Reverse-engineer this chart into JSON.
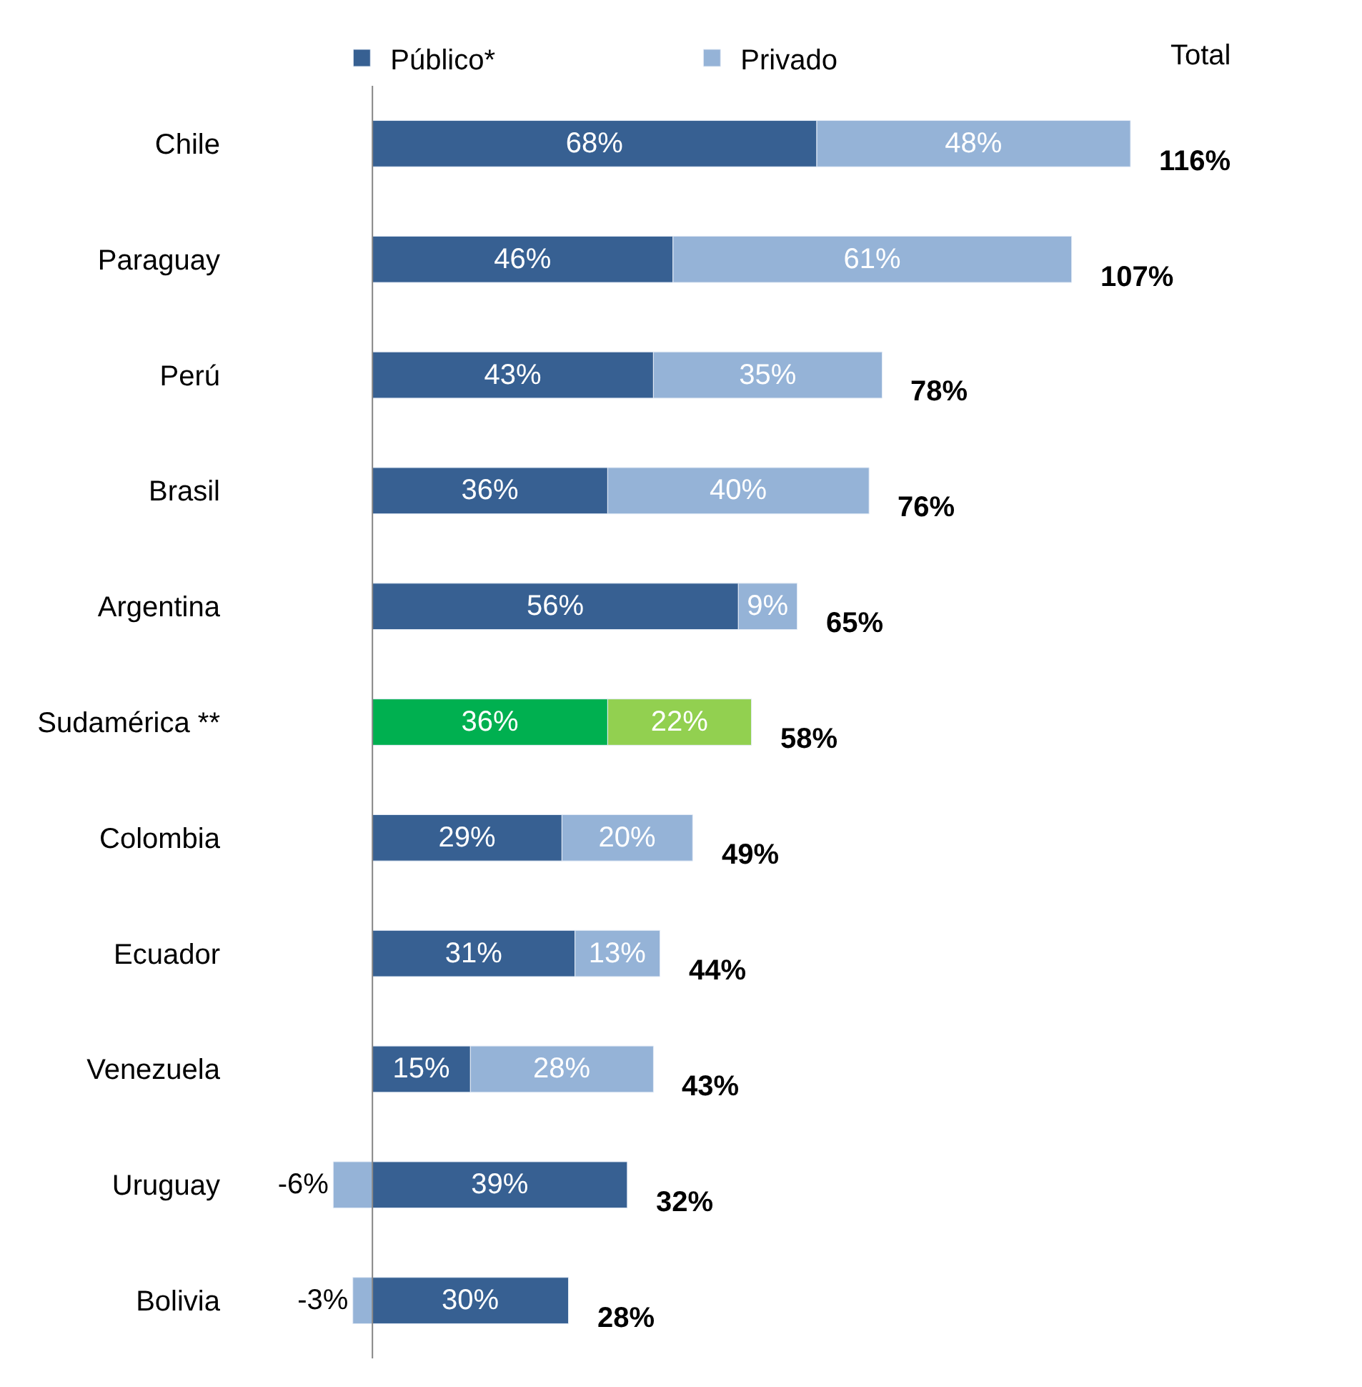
{
  "chart_data": {
    "type": "bar",
    "orientation": "horizontal",
    "stacked": true,
    "legend": "top",
    "categories": [
      "Chile",
      "Paraguay",
      "Perú",
      "Brasil",
      "Argentina",
      "Sudamérica **",
      "Colombia",
      "Ecuador",
      "Venezuela",
      "Uruguay",
      "Bolivia"
    ],
    "series": [
      {
        "name": "Público*",
        "colors": [
          "#376092",
          "#376092",
          "#376092",
          "#376092",
          "#376092",
          "#00b050",
          "#376092",
          "#376092",
          "#376092",
          "#376092",
          "#376092"
        ],
        "values": [
          68,
          46,
          43,
          36,
          56,
          36,
          29,
          31,
          15,
          39,
          30
        ],
        "value_labels": [
          "68%",
          "46%",
          "43%",
          "36%",
          "56%",
          "36%",
          "29%",
          "31%",
          "15%",
          "39%",
          "30%"
        ]
      },
      {
        "name": "Privado",
        "colors": [
          "#95b3d7",
          "#95b3d7",
          "#95b3d7",
          "#95b3d7",
          "#95b3d7",
          "#92d050",
          "#95b3d7",
          "#95b3d7",
          "#95b3d7",
          "#95b3d7",
          "#95b3d7"
        ],
        "values": [
          48,
          61,
          35,
          40,
          9,
          22,
          20,
          13,
          28,
          -6,
          -3
        ],
        "value_labels": [
          "48%",
          "61%",
          "35%",
          "40%",
          "9%",
          "22%",
          "20%",
          "13%",
          "28%",
          "-6%",
          "-3%"
        ]
      }
    ],
    "totals": [
      "116%",
      "107%",
      "78%",
      "76%",
      "65%",
      "58%",
      "49%",
      "44%",
      "43%",
      "32%",
      "28%"
    ],
    "annotations": [
      "Total"
    ]
  }
}
